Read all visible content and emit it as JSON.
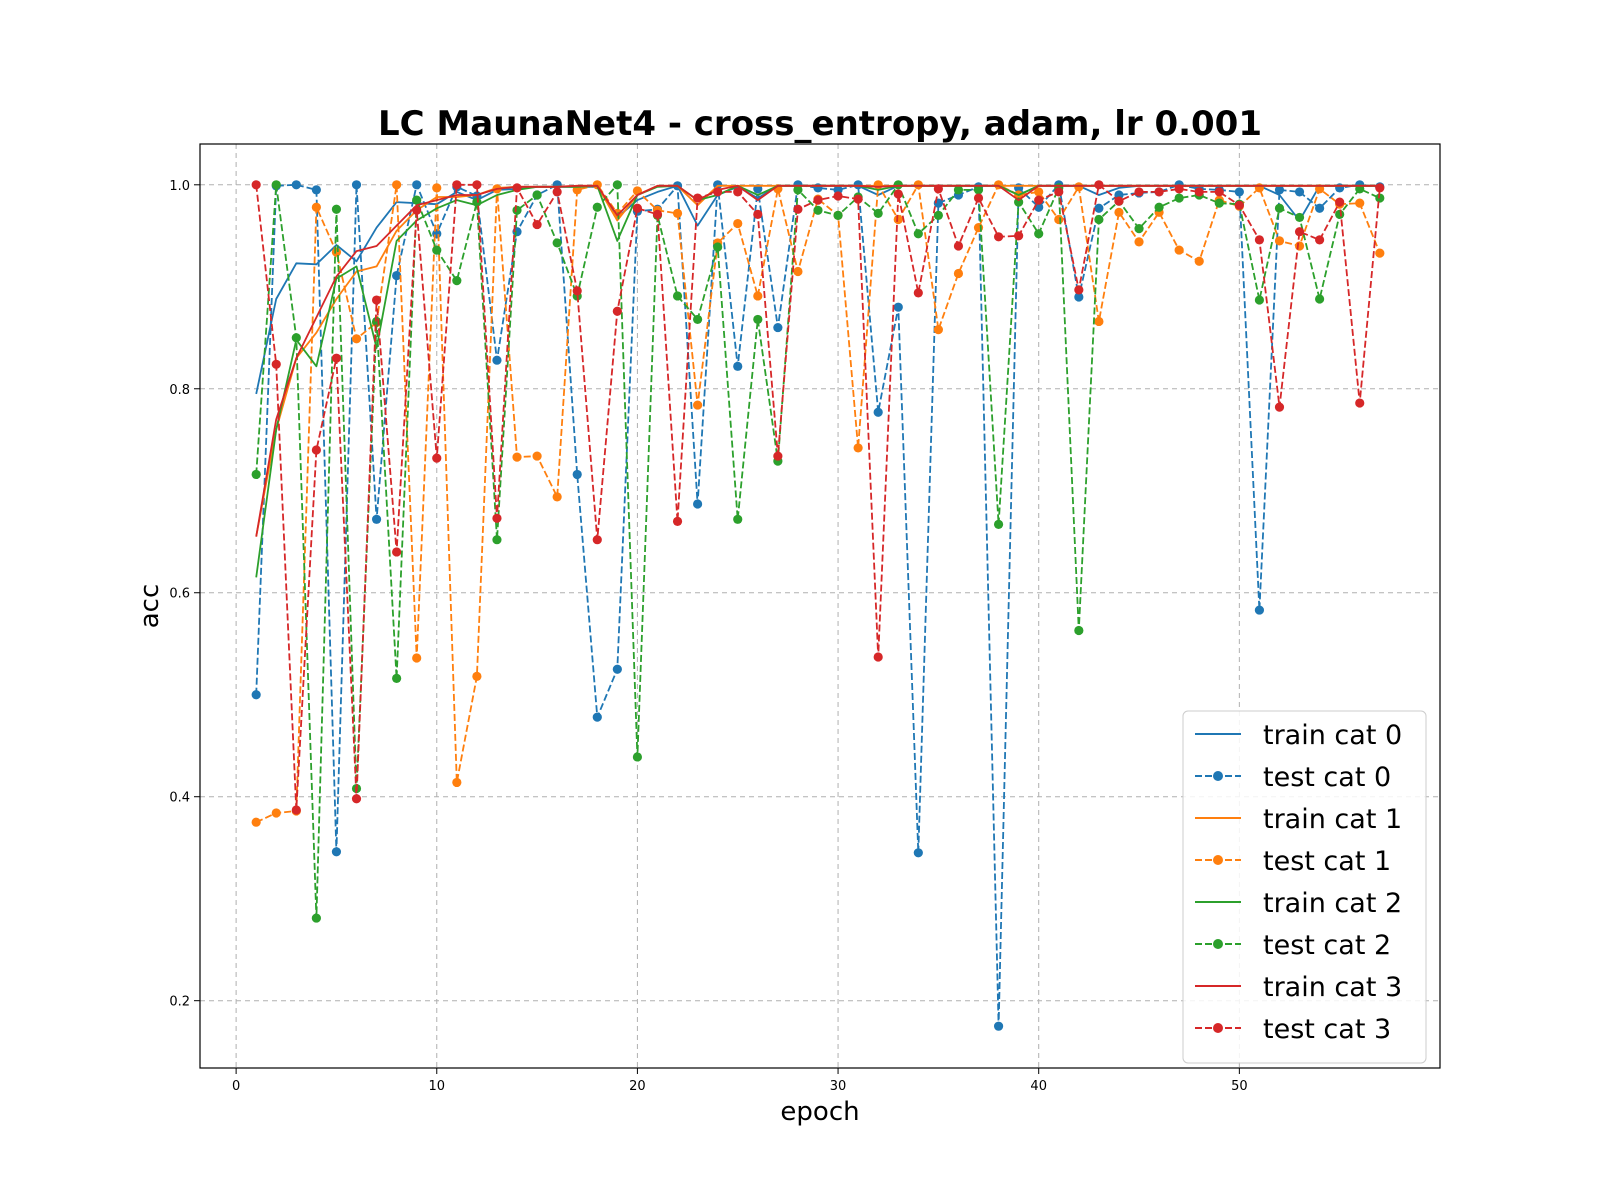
{
  "chart_data": {
    "type": "line",
    "title": "LC MaunaNet4 - cross_entropy, adam, lr 0.001",
    "xlabel": "epoch",
    "ylabel": "acc",
    "xlim": [
      -1.8,
      60
    ],
    "ylim": [
      0.134,
      1.04
    ],
    "xticks": [
      0,
      10,
      20,
      30,
      40,
      50
    ],
    "yticks": [
      0.2,
      0.4,
      0.6,
      0.8,
      1.0
    ],
    "ytick_labels": [
      "0.2",
      "0.4",
      "0.6",
      "0.8",
      "1.0"
    ],
    "grid": true,
    "legend_position": "lower-right",
    "x": [
      1,
      2,
      3,
      4,
      5,
      6,
      7,
      8,
      9,
      10,
      11,
      12,
      13,
      14,
      15,
      16,
      17,
      18,
      19,
      20,
      21,
      22,
      23,
      24,
      25,
      26,
      27,
      28,
      29,
      30,
      31,
      32,
      33,
      34,
      35,
      36,
      37,
      38,
      39,
      40,
      41,
      42,
      43,
      44,
      45,
      46,
      47,
      48,
      49,
      50,
      51,
      52,
      53,
      54,
      55,
      56,
      57
    ],
    "series": [
      {
        "name": "train cat 0",
        "color": "#1f77b4",
        "style": "solid",
        "values": [
          0.795,
          0.888,
          0.923,
          0.922,
          0.941,
          0.925,
          0.958,
          0.983,
          0.982,
          0.981,
          0.993,
          0.985,
          0.995,
          0.996,
          0.998,
          0.998,
          0.998,
          0.998,
          0.968,
          0.985,
          0.993,
          0.999,
          0.96,
          0.99,
          0.998,
          0.987,
          0.999,
          0.999,
          0.999,
          0.999,
          0.999,
          0.99,
          0.999,
          0.999,
          0.999,
          0.999,
          0.999,
          0.999,
          0.99,
          0.999,
          0.999,
          0.999,
          0.99,
          0.997,
          0.999,
          0.999,
          0.999,
          0.999,
          0.999,
          0.999,
          0.999,
          0.99,
          0.965,
          0.999,
          0.999,
          0.999,
          0.999
        ]
      },
      {
        "name": "test cat 0",
        "color": "#1f77b4",
        "style": "dashed",
        "values": [
          0.5,
          0.999,
          1.0,
          0.995,
          0.346,
          1.0,
          0.672,
          0.911,
          1.0,
          0.952,
          0.998,
          0.989,
          0.828,
          0.954,
          0.99,
          1.0,
          0.716,
          0.478,
          0.525,
          0.974,
          0.976,
          0.999,
          0.687,
          1.0,
          0.822,
          0.996,
          0.86,
          1.0,
          0.997,
          0.995,
          1.0,
          0.777,
          0.88,
          0.345,
          0.982,
          0.99,
          0.998,
          0.175,
          0.997,
          0.978,
          1.0,
          0.89,
          0.977,
          0.99,
          0.992,
          0.993,
          1.0,
          0.996,
          0.995,
          0.993,
          0.583,
          0.995,
          0.993,
          0.977,
          0.997,
          1.0,
          0.998
        ]
      },
      {
        "name": "train cat 1",
        "color": "#ff7f0e",
        "style": "solid",
        "values": [
          0.655,
          0.76,
          0.83,
          0.855,
          0.888,
          0.915,
          0.92,
          0.955,
          0.975,
          0.988,
          0.988,
          0.99,
          0.997,
          0.998,
          0.998,
          0.998,
          0.999,
          0.999,
          0.965,
          0.99,
          0.999,
          0.999,
          0.98,
          0.999,
          0.999,
          0.999,
          0.999,
          0.999,
          0.999,
          0.999,
          0.999,
          0.999,
          0.999,
          0.999,
          0.999,
          0.999,
          0.999,
          0.999,
          0.999,
          0.999,
          0.999,
          0.999,
          0.999,
          0.999,
          0.999,
          0.999,
          0.999,
          0.999,
          0.999,
          0.999,
          0.999,
          0.999,
          0.999,
          0.999,
          0.999,
          0.999,
          0.999
        ]
      },
      {
        "name": "test cat 1",
        "color": "#ff7f0e",
        "style": "dashed",
        "values": [
          0.375,
          0.384,
          0.386,
          0.978,
          0.934,
          0.849,
          0.865,
          1.0,
          0.536,
          0.997,
          0.414,
          0.518,
          0.996,
          0.733,
          0.734,
          0.694,
          0.995,
          1.0,
          0.972,
          0.994,
          0.975,
          0.972,
          0.784,
          0.943,
          0.962,
          0.891,
          0.996,
          0.915,
          0.986,
          0.97,
          0.742,
          1.0,
          0.966,
          1.0,
          0.858,
          0.913,
          0.958,
          1.0,
          0.99,
          0.993,
          0.966,
          0.998,
          0.866,
          0.973,
          0.944,
          0.973,
          0.936,
          0.925,
          0.985,
          0.979,
          0.997,
          0.945,
          0.94,
          0.996,
          0.981,
          0.982,
          0.933
        ]
      },
      {
        "name": "train cat 2",
        "color": "#2ca02c",
        "style": "solid",
        "values": [
          0.615,
          0.76,
          0.848,
          0.822,
          0.908,
          0.92,
          0.84,
          0.945,
          0.965,
          0.977,
          0.985,
          0.98,
          0.99,
          0.995,
          0.998,
          0.998,
          0.998,
          0.999,
          0.945,
          0.99,
          0.998,
          0.999,
          0.985,
          0.99,
          0.999,
          0.99,
          0.999,
          0.999,
          0.999,
          0.999,
          0.999,
          0.995,
          0.999,
          0.999,
          0.999,
          0.999,
          0.999,
          0.999,
          0.99,
          0.999,
          0.999,
          0.999,
          0.999,
          0.999,
          0.999,
          0.999,
          0.999,
          0.999,
          0.999,
          0.999,
          0.999,
          0.999,
          0.999,
          0.999,
          0.999,
          0.999,
          0.999
        ]
      },
      {
        "name": "test cat 2",
        "color": "#2ca02c",
        "style": "dashed",
        "values": [
          0.716,
          1.0,
          0.85,
          0.281,
          0.976,
          0.408,
          0.866,
          0.516,
          0.985,
          0.936,
          0.906,
          0.983,
          0.652,
          0.975,
          0.99,
          0.943,
          0.891,
          0.978,
          1.0,
          0.439,
          0.97,
          0.891,
          0.868,
          0.939,
          0.672,
          0.868,
          0.729,
          0.995,
          0.975,
          0.97,
          0.988,
          0.972,
          1.0,
          0.952,
          0.97,
          0.995,
          0.995,
          0.667,
          0.983,
          0.952,
          0.997,
          0.563,
          0.966,
          0.984,
          0.957,
          0.978,
          0.987,
          0.99,
          0.982,
          0.981,
          0.887,
          0.977,
          0.968,
          0.888,
          0.971,
          0.996,
          0.987
        ]
      },
      {
        "name": "train cat 3",
        "color": "#d62728",
        "style": "solid",
        "values": [
          0.655,
          0.77,
          0.83,
          0.87,
          0.91,
          0.935,
          0.94,
          0.96,
          0.98,
          0.985,
          0.99,
          0.99,
          0.996,
          0.998,
          0.998,
          0.998,
          0.999,
          0.999,
          0.97,
          0.99,
          0.999,
          0.999,
          0.985,
          0.995,
          0.999,
          0.985,
          0.999,
          0.999,
          0.999,
          0.999,
          0.999,
          0.998,
          0.999,
          0.999,
          0.999,
          0.999,
          0.999,
          0.999,
          0.985,
          0.999,
          0.999,
          0.999,
          0.999,
          0.999,
          0.999,
          0.999,
          0.999,
          0.999,
          0.999,
          0.999,
          0.999,
          0.999,
          0.999,
          0.999,
          0.999,
          0.999,
          0.999
        ]
      },
      {
        "name": "test cat 3",
        "color": "#d62728",
        "style": "dashed",
        "values": [
          1.0,
          0.824,
          0.387,
          0.74,
          0.83,
          0.398,
          0.887,
          0.64,
          0.975,
          0.732,
          1.0,
          1.0,
          0.673,
          0.997,
          0.961,
          0.993,
          0.896,
          0.652,
          0.876,
          0.977,
          0.971,
          0.67,
          0.987,
          0.993,
          0.993,
          0.971,
          0.734,
          0.976,
          0.985,
          0.989,
          0.986,
          0.537,
          0.991,
          0.894,
          0.996,
          0.94,
          0.987,
          0.949,
          0.95,
          0.985,
          0.993,
          0.897,
          1.0,
          0.984,
          0.993,
          0.993,
          0.996,
          0.993,
          0.993,
          0.98,
          0.946,
          0.782,
          0.954,
          0.946,
          0.983,
          0.786,
          0.997
        ]
      }
    ]
  }
}
